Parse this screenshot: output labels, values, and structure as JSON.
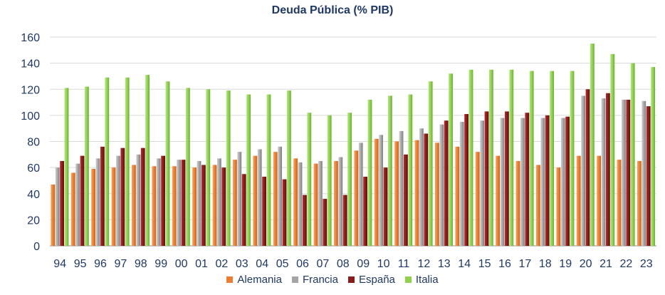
{
  "chart_data": {
    "type": "bar",
    "title": "Deuda Pública (% PIB)",
    "xlabel": "",
    "ylabel": "",
    "ylim": [
      0,
      160
    ],
    "yticks": [
      0,
      20,
      40,
      60,
      80,
      100,
      120,
      140,
      160
    ],
    "grid": true,
    "legend_position": "bottom",
    "categories": [
      "94",
      "95",
      "96",
      "97",
      "98",
      "99",
      "00",
      "01",
      "02",
      "03",
      "04",
      "05",
      "06",
      "07",
      "08",
      "09",
      "10",
      "11",
      "12",
      "13",
      "14",
      "15",
      "16",
      "17",
      "18",
      "19",
      "20",
      "21",
      "22",
      "23"
    ],
    "series": [
      {
        "name": "Alemania",
        "color": "#ed7d31",
        "values": [
          47,
          56,
          59,
          60,
          62,
          61,
          61,
          60,
          62,
          66,
          69,
          72,
          67,
          63,
          65,
          73,
          82,
          80,
          81,
          79,
          76,
          72,
          69,
          65,
          62,
          60,
          69,
          69,
          66,
          65
        ]
      },
      {
        "name": "Francia",
        "color": "#a5a5a5",
        "values": [
          60,
          63,
          67,
          69,
          70,
          67,
          66,
          65,
          67,
          72,
          74,
          76,
          64,
          65,
          68,
          79,
          85,
          88,
          90,
          93,
          95,
          96,
          98,
          98,
          98,
          98,
          115,
          113,
          112,
          111
        ]
      },
      {
        "name": "España",
        "color": "#8b1a1a",
        "values": [
          65,
          69,
          76,
          75,
          75,
          69,
          66,
          62,
          60,
          55,
          53,
          51,
          39,
          36,
          39,
          53,
          60,
          70,
          86,
          96,
          101,
          103,
          103,
          102,
          100,
          99,
          120,
          117,
          112,
          107
        ]
      },
      {
        "name": "Italia",
        "color": "#8fd14f",
        "values": [
          121,
          122,
          129,
          129,
          131,
          126,
          121,
          120,
          119,
          116,
          116,
          119,
          102,
          100,
          102,
          112,
          115,
          116,
          126,
          132,
          135,
          135,
          135,
          134,
          134,
          134,
          155,
          147,
          140,
          137
        ]
      }
    ]
  }
}
